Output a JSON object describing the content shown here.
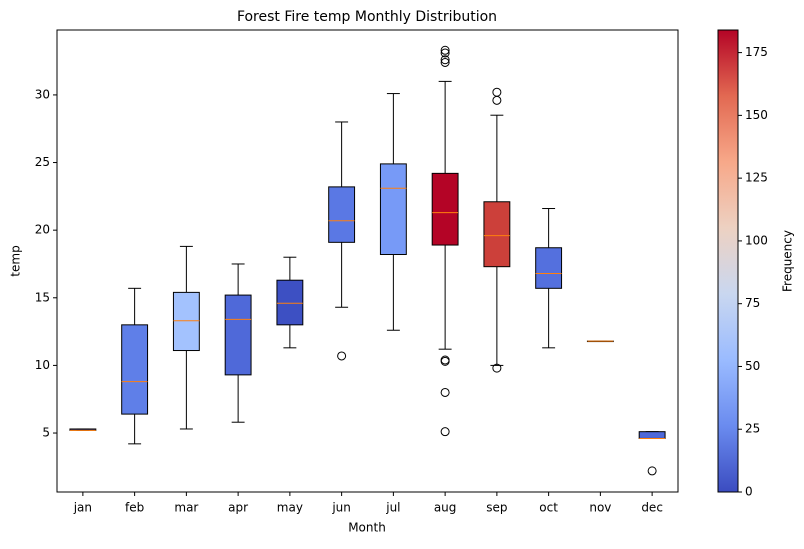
{
  "chart_data": {
    "type": "box",
    "title": "Forest Fire temp Monthly Distribution",
    "x_label": "Month",
    "y_label": "temp",
    "categories": [
      "jan",
      "feb",
      "mar",
      "apr",
      "may",
      "jun",
      "jul",
      "aug",
      "sep",
      "oct",
      "nov",
      "dec"
    ],
    "boxes": [
      {
        "low": 5.2,
        "q1": 5.2,
        "median": 5.2,
        "q3": 5.3,
        "high": 5.3,
        "outliers": [],
        "color": "#3d50c3"
      },
      {
        "low": 4.2,
        "q1": 6.4,
        "median": 8.8,
        "q3": 13.0,
        "high": 15.7,
        "outliers": [],
        "color": "#5f7fe8"
      },
      {
        "low": 5.3,
        "q1": 11.1,
        "median": 13.3,
        "q3": 15.4,
        "high": 18.8,
        "outliers": [],
        "color": "#a3c2fe"
      },
      {
        "low": 5.8,
        "q1": 9.3,
        "median": 13.4,
        "q3": 15.2,
        "high": 17.5,
        "outliers": [],
        "color": "#4f69d9"
      },
      {
        "low": 11.3,
        "q1": 13.0,
        "median": 14.6,
        "q3": 16.3,
        "high": 18.0,
        "outliers": [],
        "color": "#3d50c3"
      },
      {
        "low": 14.3,
        "q1": 19.1,
        "median": 20.7,
        "q3": 23.2,
        "high": 28.0,
        "outliers": [
          10.7
        ],
        "color": "#5a78e4"
      },
      {
        "low": 12.6,
        "q1": 18.2,
        "median": 23.1,
        "q3": 24.9,
        "high": 30.1,
        "outliers": [],
        "color": "#779af7"
      },
      {
        "low": 11.2,
        "q1": 18.9,
        "median": 21.3,
        "q3": 24.2,
        "high": 31.0,
        "outliers": [
          33.3,
          33.1,
          32.6,
          32.4,
          10.4,
          10.3,
          8.0,
          5.1
        ],
        "color": "#b40426"
      },
      {
        "low": 10.0,
        "q1": 17.3,
        "median": 19.6,
        "q3": 22.1,
        "high": 28.5,
        "outliers": [
          30.2,
          29.6,
          9.8
        ],
        "color": "#cc403a"
      },
      {
        "low": 11.3,
        "q1": 15.7,
        "median": 16.8,
        "q3": 18.7,
        "high": 21.6,
        "outliers": [],
        "color": "#5470de"
      },
      {
        "low": 11.8,
        "q1": 11.8,
        "median": 11.8,
        "q3": 11.8,
        "high": 11.8,
        "outliers": [],
        "color": "#3b4cc0"
      },
      {
        "low": 4.6,
        "q1": 4.6,
        "median": 4.6,
        "q3": 5.1,
        "high": 5.1,
        "outliers": [
          2.2
        ],
        "color": "#4f69d9"
      }
    ],
    "median_color": "#ff7f0e",
    "ylim": [
      0.64,
      34.8
    ],
    "yticks": [
      5,
      10,
      15,
      20,
      25,
      30
    ],
    "colorbar": {
      "label": "Frequency",
      "lim": [
        0,
        184
      ],
      "ticks": [
        0,
        25,
        50,
        75,
        100,
        125,
        150,
        175
      ],
      "colormap": [
        "#3b4cc0",
        "#6a8bef",
        "#9abbff",
        "#c9d7f0",
        "#edd1c2",
        "#f7a889",
        "#e26952",
        "#b40426"
      ]
    }
  }
}
